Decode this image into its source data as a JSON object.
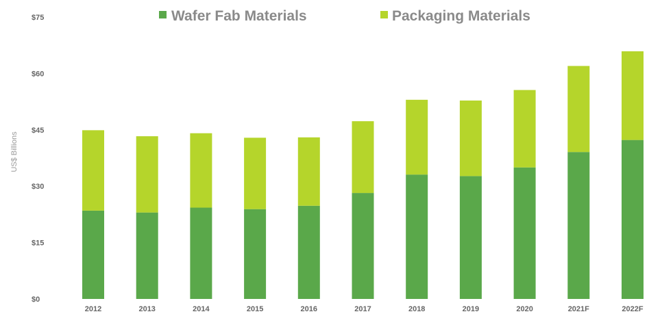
{
  "chart_data": {
    "type": "bar",
    "stacked": true,
    "categories": [
      "2012",
      "2013",
      "2014",
      "2015",
      "2016",
      "2017",
      "2018",
      "2019",
      "2020",
      "2021F",
      "2022F"
    ],
    "series": [
      {
        "name": "Wafer Fab Materials",
        "color": "#5aa84a",
        "values": [
          23.5,
          23.0,
          24.3,
          23.9,
          24.8,
          28.2,
          33.1,
          32.7,
          35.0,
          39.1,
          42.3
        ]
      },
      {
        "name": "Packaging Materials",
        "color": "#b5d52b",
        "values": [
          21.4,
          20.3,
          19.8,
          19.0,
          18.2,
          19.1,
          19.9,
          20.1,
          20.6,
          22.9,
          23.6
        ]
      }
    ],
    "xlabel": "",
    "ylabel": "US$ Billions",
    "ylim": [
      0,
      75
    ],
    "yticks": [
      0,
      15,
      30,
      45,
      60,
      75
    ],
    "ytick_labels": [
      "$0",
      "$15",
      "$30",
      "$45",
      "$60",
      "$75"
    ],
    "grid": false,
    "legend_position": "top"
  }
}
